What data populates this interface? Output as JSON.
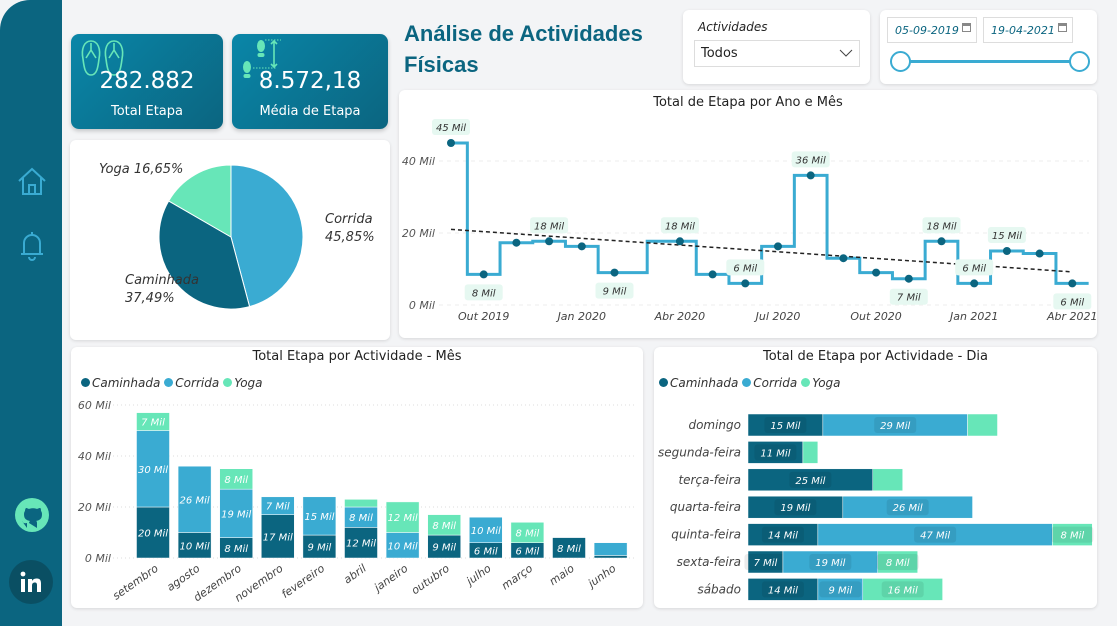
{
  "colors": {
    "caminhada": "#0b6580",
    "corrida": "#3aabd2",
    "yoga": "#67e6b8",
    "line": "#3aabd2"
  },
  "sidebar": {
    "icons": [
      "home-icon",
      "bell-icon",
      "github-icon",
      "linkedin-icon"
    ]
  },
  "title": {
    "line1": "Análise de Actividades",
    "line2": "Físicas"
  },
  "kpis": [
    {
      "value": "282.882",
      "label": "Total Etapa",
      "icon": "flip-flops-icon"
    },
    {
      "value": "8.572,18",
      "label": "Média de Etapa",
      "icon": "footsteps-icon"
    }
  ],
  "slicer": {
    "label": "Actividades",
    "value": "Todos"
  },
  "date_slicer": {
    "start": "05-09-2019",
    "end": "19-04-2021",
    "range_fraction": [
      0,
      1
    ]
  },
  "legend": [
    "Caminhada",
    "Corrida",
    "Yoga"
  ],
  "chart_data": [
    {
      "type": "pie",
      "slices": [
        {
          "name": "Corrida",
          "value": 45.85,
          "label": "Corrida",
          "pct": "45,85%"
        },
        {
          "name": "Caminhada",
          "value": 37.49,
          "label": "Caminhada",
          "pct": "37,49%"
        },
        {
          "name": "Yoga",
          "value": 16.65,
          "label": "Yoga",
          "pct": "16,65%"
        }
      ]
    },
    {
      "type": "line",
      "title": "Total de Etapa por Ano e Mês",
      "step": true,
      "trendline": true,
      "yticks": [
        "0 Mil",
        "20 Mil",
        "40 Mil"
      ],
      "ylim": [
        0,
        45
      ],
      "xticks": [
        {
          "i": 1,
          "label": "Out 2019"
        },
        {
          "i": 4,
          "label": "Jan 2020"
        },
        {
          "i": 7,
          "label": "Abr 2020"
        },
        {
          "i": 10,
          "label": "Jul 2020"
        },
        {
          "i": 13,
          "label": "Out 2020"
        },
        {
          "i": 16,
          "label": "Jan 2021"
        },
        {
          "i": 19,
          "label": "Abr 2021"
        }
      ],
      "points": [
        {
          "i": 0,
          "month": "Set 2019",
          "y": 45,
          "label": "45 Mil",
          "pos": "above"
        },
        {
          "i": 1,
          "month": "Out 2019",
          "y": 8.5,
          "label": "8 Mil",
          "pos": "below"
        },
        {
          "i": 2,
          "month": "Nov 2019",
          "y": 17.3
        },
        {
          "i": 3,
          "month": "Dez 2019",
          "y": 17.7,
          "label": "18 Mil",
          "pos": "above"
        },
        {
          "i": 4,
          "month": "Jan 2020",
          "y": 16.3
        },
        {
          "i": 5,
          "month": "Fev 2020",
          "y": 9,
          "label": "9 Mil",
          "pos": "below"
        },
        {
          "i": 7,
          "month": "Abr 2020",
          "y": 17.7,
          "label": "18 Mil",
          "pos": "above"
        },
        {
          "i": 8,
          "month": "Mai 2020",
          "y": 8.5
        },
        {
          "i": 9,
          "month": "Jun 2020",
          "y": 6,
          "label": "6 Mil",
          "pos": "above"
        },
        {
          "i": 10,
          "month": "Jul 2020",
          "y": 16.3
        },
        {
          "i": 11,
          "month": "Ago 2020",
          "y": 36,
          "label": "36 Mil",
          "pos": "above"
        },
        {
          "i": 12,
          "month": "Set 2020",
          "y": 13
        },
        {
          "i": 13,
          "month": "Out 2020",
          "y": 9
        },
        {
          "i": 14,
          "month": "Nov 2020",
          "y": 7.3,
          "label": "7 Mil",
          "pos": "below"
        },
        {
          "i": 15,
          "month": "Dez 2020",
          "y": 17.7,
          "label": "18 Mil",
          "pos": "above"
        },
        {
          "i": 16,
          "month": "Jan 2021",
          "y": 6,
          "label": "6 Mil",
          "pos": "above"
        },
        {
          "i": 17,
          "month": "Fev 2021",
          "y": 15,
          "label": "15 Mil",
          "pos": "above"
        },
        {
          "i": 18,
          "month": "Mar 2021",
          "y": 14.3
        },
        {
          "i": 19,
          "month": "Abr 2021",
          "y": 6,
          "label": "6 Mil",
          "pos": "below"
        }
      ],
      "trend": [
        21,
        9.2
      ]
    },
    {
      "type": "bar",
      "stacked": true,
      "title": "Total Etapa por Actividade - Mês",
      "yticks": [
        "0 Mil",
        "20 Mil",
        "40 Mil",
        "60 Mil"
      ],
      "ylim": [
        0,
        60
      ],
      "categories": [
        "setembro",
        "agosto",
        "dezembro",
        "novembro",
        "fevereiro",
        "abril",
        "janeiro",
        "outubro",
        "julho",
        "março",
        "maio",
        "junho"
      ],
      "series": [
        {
          "name": "Caminhada",
          "values": [
            20,
            10,
            8,
            17,
            9,
            12,
            0,
            9,
            6,
            6,
            8,
            1
          ]
        },
        {
          "name": "Corrida",
          "values": [
            30,
            26,
            19,
            7,
            15,
            8,
            10,
            0,
            10,
            0,
            0,
            5
          ]
        },
        {
          "name": "Yoga",
          "values": [
            7,
            0,
            8,
            0,
            0,
            3,
            12,
            8,
            0,
            8,
            0,
            0
          ]
        }
      ]
    },
    {
      "type": "bar",
      "orientation": "horizontal",
      "stacked": true,
      "title": "Total de Etapa por Actividade - Dia",
      "categories": [
        "domingo",
        "segunda-feira",
        "terça-feira",
        "quarta-feira",
        "quinta-feira",
        "sexta-feira",
        "sábado"
      ],
      "series": [
        {
          "name": "Caminhada",
          "values": [
            15,
            11,
            25,
            19,
            14,
            7,
            14
          ]
        },
        {
          "name": "Corrida",
          "values": [
            29,
            0,
            0,
            26,
            47,
            19,
            9
          ]
        },
        {
          "name": "Yoga",
          "values": [
            6,
            3,
            6,
            0,
            8,
            8,
            16
          ]
        }
      ]
    }
  ]
}
